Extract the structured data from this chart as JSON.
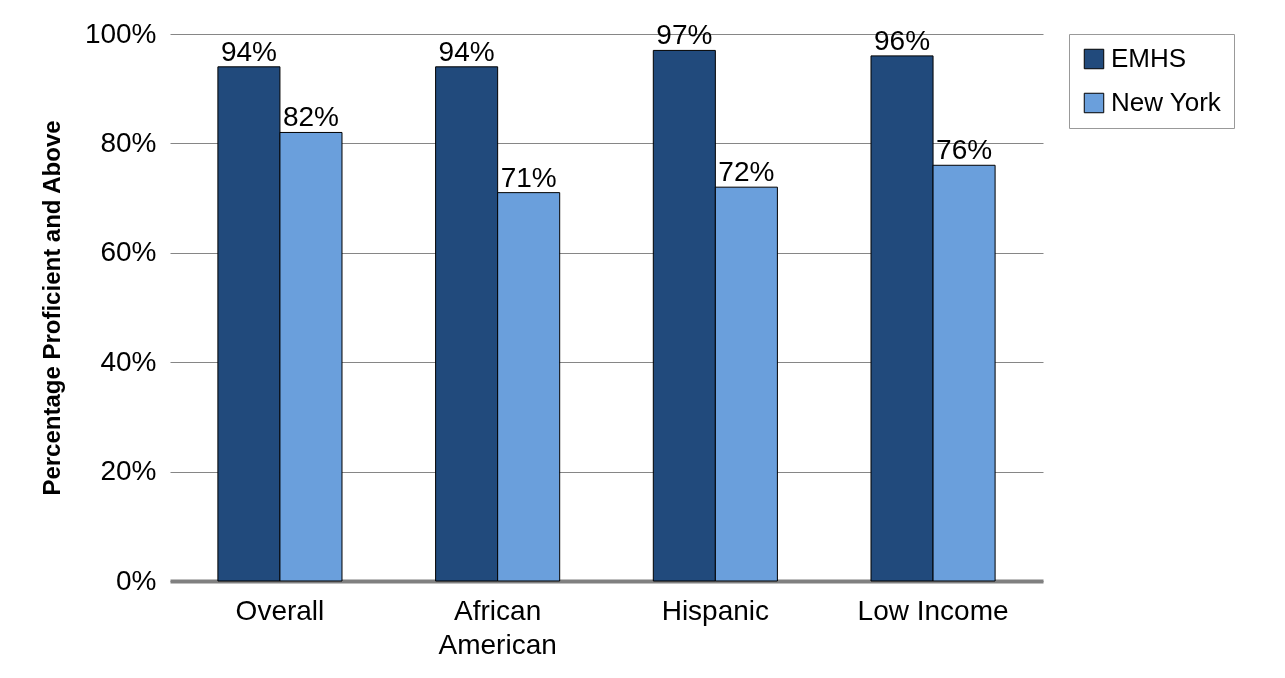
{
  "chart_data": {
    "type": "bar",
    "ylabel": "Percentage Proficient and Above",
    "categories": [
      "Overall",
      "African American",
      "Hispanic",
      "Low Income"
    ],
    "series": [
      {
        "name": "EMHS",
        "color": "#214a7c",
        "values": [
          94,
          94,
          97,
          96
        ],
        "value_labels": [
          "94%",
          "94%",
          "97%",
          "96%"
        ]
      },
      {
        "name": "New York",
        "color": "#6a9fdc",
        "values": [
          82,
          71,
          72,
          76
        ],
        "value_labels": [
          "82%",
          "71%",
          "72%",
          "76%"
        ]
      }
    ],
    "ylim": [
      0,
      100
    ],
    "yticks": [
      {
        "value": 0,
        "label": "0%"
      },
      {
        "value": 20,
        "label": "20%"
      },
      {
        "value": 40,
        "label": "40%"
      },
      {
        "value": 60,
        "label": "60%"
      },
      {
        "value": 80,
        "label": "80%"
      },
      {
        "value": 100,
        "label": "100%"
      }
    ],
    "grid": "y",
    "legend": "right"
  }
}
